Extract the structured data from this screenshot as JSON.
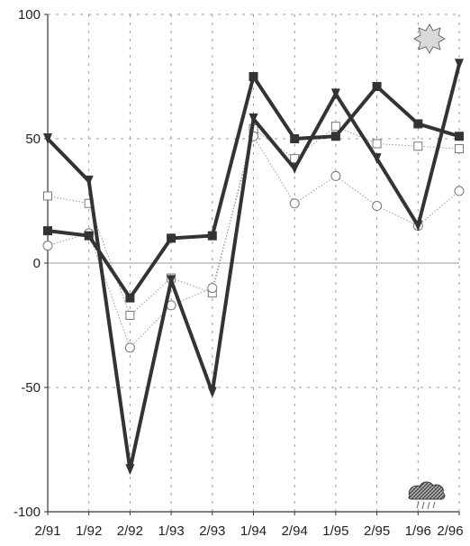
{
  "chart_data": {
    "type": "line",
    "x": [
      "2/91",
      "1/92",
      "2/92",
      "1/93",
      "2/93",
      "1/94",
      "2/94",
      "1/95",
      "2/95",
      "1/96",
      "2/96"
    ],
    "ylim": [
      -100,
      100
    ],
    "yticks": [
      100,
      50,
      0,
      -50,
      -100
    ],
    "grid": true,
    "series": [
      {
        "marker": "filled-square",
        "line": "thick",
        "color": "#333333",
        "values": [
          13,
          11,
          -14,
          10,
          11,
          75,
          50,
          51,
          71,
          56,
          51
        ]
      },
      {
        "marker": "filled-triangle-down",
        "line": "thick",
        "color": "#333333",
        "values": [
          50,
          33,
          -83,
          -7,
          -52,
          58,
          38,
          68,
          42,
          15,
          80
        ]
      },
      {
        "marker": "open-square",
        "line": "dotted",
        "color": "#9a9a9a",
        "values": [
          27,
          24,
          -21,
          -6,
          -12,
          54,
          42,
          55,
          48,
          47,
          46
        ]
      },
      {
        "marker": "open-circle",
        "line": "dotted",
        "color": "#9a9a9a",
        "values": [
          7,
          12,
          -34,
          -17,
          -10,
          51,
          24,
          35,
          23,
          15,
          29
        ]
      }
    ],
    "icons": {
      "top_right": "sun-icon",
      "bottom_right": "rain-cloud-icon"
    }
  }
}
